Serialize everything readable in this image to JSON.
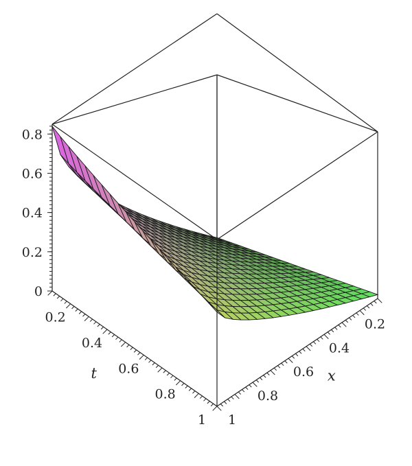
{
  "chart_data": {
    "type": "surface3d",
    "title": "",
    "x_axis": {
      "label": "x",
      "ticks": [
        "0.2",
        "0.4",
        "0.6",
        "0.8",
        "1"
      ],
      "range": [
        0.1,
        1.0
      ]
    },
    "t_axis": {
      "label": "t",
      "ticks": [
        "0.2",
        "0.4",
        "0.6",
        "0.8",
        "1"
      ],
      "range": [
        0.1,
        1.0
      ]
    },
    "z_axis": {
      "ticks": [
        "0",
        "0.2",
        "0.4",
        "0.6",
        "0.8"
      ],
      "range": [
        0,
        0.85
      ]
    },
    "surface": {
      "grid_size": 20,
      "corner_values": {
        "x_min_t_min": 0.84,
        "x_max_t_min": 0.02,
        "x_min_t_max": 0.48,
        "x_max_t_max": 0.02
      },
      "colormap": [
        "#e060e8",
        "#e8a0a0",
        "#c0d060",
        "#60e060"
      ]
    },
    "grid": false
  }
}
